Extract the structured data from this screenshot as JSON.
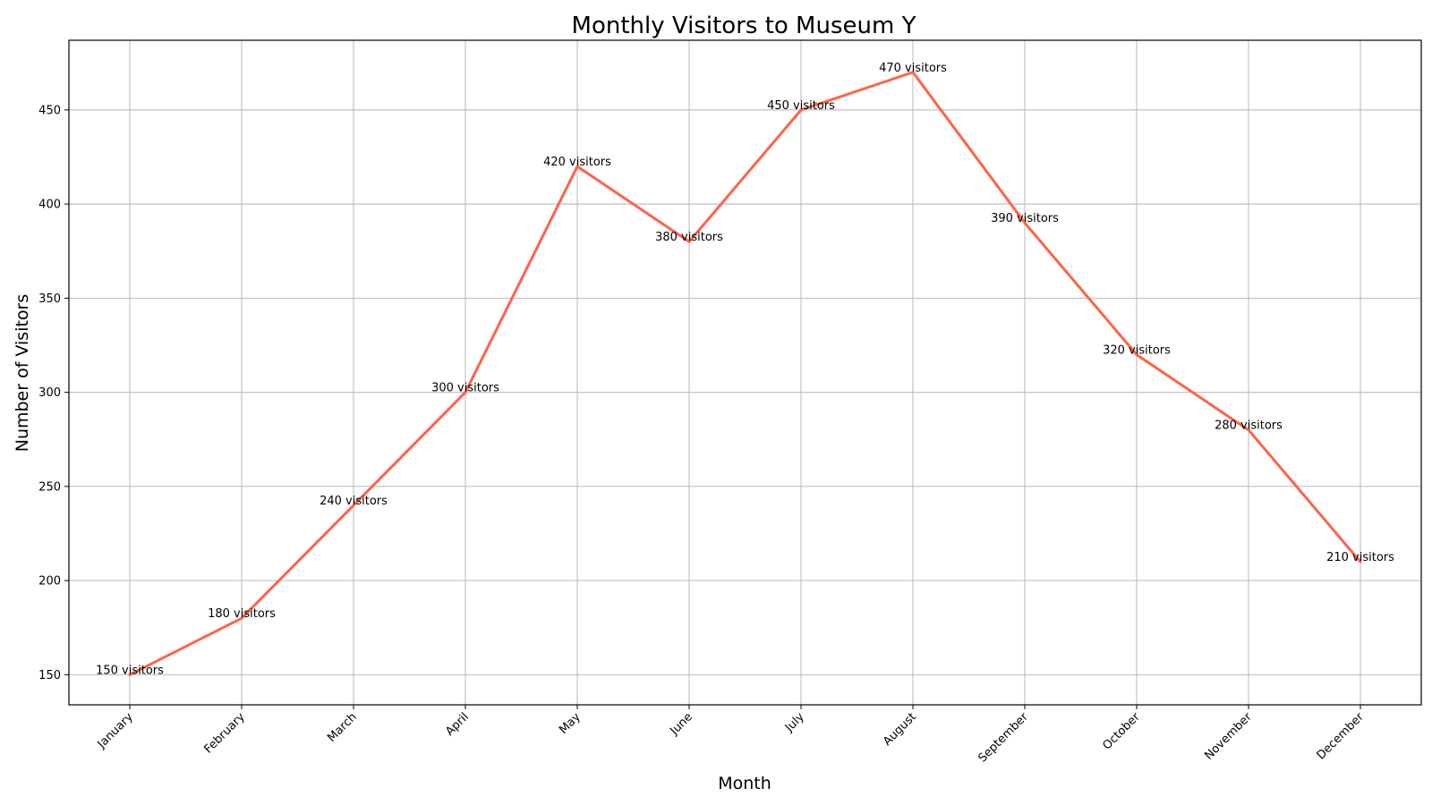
{
  "chart_data": {
    "type": "line",
    "title": "Monthly Visitors to Museum Y",
    "xlabel": "Month",
    "ylabel": "Number of Visitors",
    "categories": [
      "January",
      "February",
      "March",
      "April",
      "May",
      "June",
      "July",
      "August",
      "September",
      "October",
      "November",
      "December"
    ],
    "series": [
      {
        "values": [
          150,
          180,
          240,
          300,
          420,
          380,
          450,
          470,
          390,
          320,
          280,
          210
        ],
        "color": "#ff6347"
      }
    ],
    "data_labels": [
      "150 visitors",
      "180 visitors",
      "240 visitors",
      "300 visitors",
      "420 visitors",
      "380 visitors",
      "450 visitors",
      "470 visitors",
      "390 visitors",
      "320 visitors",
      "280 visitors",
      "210 visitors"
    ],
    "yticks": [
      150,
      200,
      250,
      300,
      350,
      400,
      450
    ],
    "ylim": [
      134,
      487
    ],
    "grid": true
  }
}
